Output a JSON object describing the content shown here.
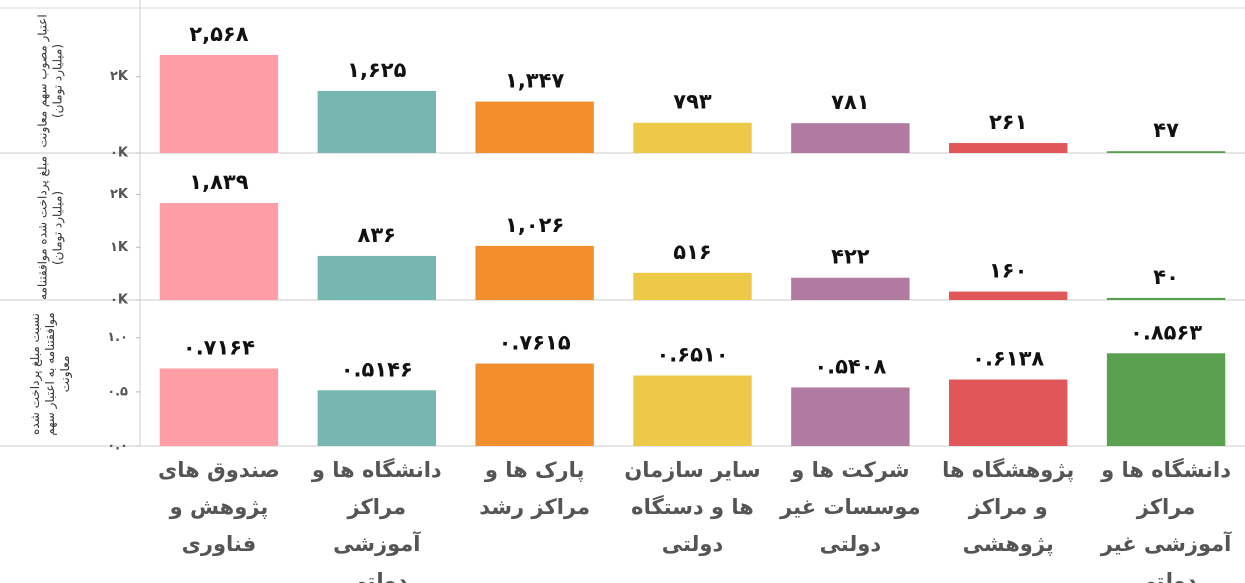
{
  "chart_data": [
    {
      "type": "bar",
      "y_label": "اعتبار مصوب سهم معاونت (میلیارد تومان)",
      "values": [
        2568,
        1625,
        1347,
        793,
        781,
        261,
        47
      ],
      "value_labels": [
        "۲,۵۶۸",
        "۱,۶۲۵",
        "۱,۳۴۷",
        "۷۹۳",
        "۷۸۱",
        "۲۶۱",
        "۴۷"
      ],
      "colors": [
        "#ff9da7",
        "#76b7b2",
        "#f28e2b",
        "#edc948",
        "#b07aa1",
        "#e15759",
        "#59a14f"
      ],
      "ylim": [
        0,
        3800
      ],
      "yticks": [
        {
          "value": 0,
          "label": "۰K"
        },
        {
          "value": 2000,
          "label": "۲K"
        }
      ]
    },
    {
      "type": "bar",
      "y_label": "مبلغ پرداخت شده موافقتنامه (میلیارد تومان)",
      "values": [
        1839,
        836,
        1026,
        516,
        422,
        160,
        40
      ],
      "value_labels": [
        "۱,۸۳۹",
        "۸۳۶",
        "۱,۰۲۶",
        "۵۱۶",
        "۴۲۲",
        "۱۶۰",
        "۴۰"
      ],
      "colors": [
        "#ff9da7",
        "#76b7b2",
        "#f28e2b",
        "#edc948",
        "#b07aa1",
        "#e15759",
        "#59a14f"
      ],
      "ylim": [
        0,
        2750
      ],
      "yticks": [
        {
          "value": 0,
          "label": "۰K"
        },
        {
          "value": 1000,
          "label": "۱K"
        },
        {
          "value": 2000,
          "label": "۲K"
        }
      ]
    },
    {
      "type": "bar",
      "y_label": "نسبت مبلغ پرداخت شده موافقتنامه به اعتبار سهم معاونت",
      "categories": [
        "صندوق های پژوهش و فناوری",
        "دانشگاه ها و مراکز آموزشی دولتی",
        "پارک ها و مراکز رشد",
        "سایر سازمان ها و دستگاه دولتی",
        "شرکت ها و موسسات غیر دولتی",
        "پژوهشگاه ها و مراکز پژوهشی",
        "دانشگاه ها و مراکز آموزشی غیر دولتی"
      ],
      "values": [
        0.7164,
        0.5146,
        0.7615,
        0.651,
        0.5408,
        0.6138,
        0.8563
      ],
      "value_labels": [
        "۰.۷۱۶۴",
        "۰.۵۱۴۶",
        "۰.۷۶۱۵",
        "۰.۶۵۱۰",
        "۰.۵۴۰۸",
        "۰.۶۱۳۸",
        "۰.۸۵۶۳"
      ],
      "colors": [
        "#ff9da7",
        "#76b7b2",
        "#f28e2b",
        "#edc948",
        "#b07aa1",
        "#e15759",
        "#59a14f"
      ],
      "ylim": [
        0,
        1.33
      ],
      "yticks": [
        {
          "value": 0,
          "label": "۰.۰"
        },
        {
          "value": 0.5,
          "label": "۰.۵"
        },
        {
          "value": 1,
          "label": "۱.۰"
        }
      ]
    }
  ]
}
